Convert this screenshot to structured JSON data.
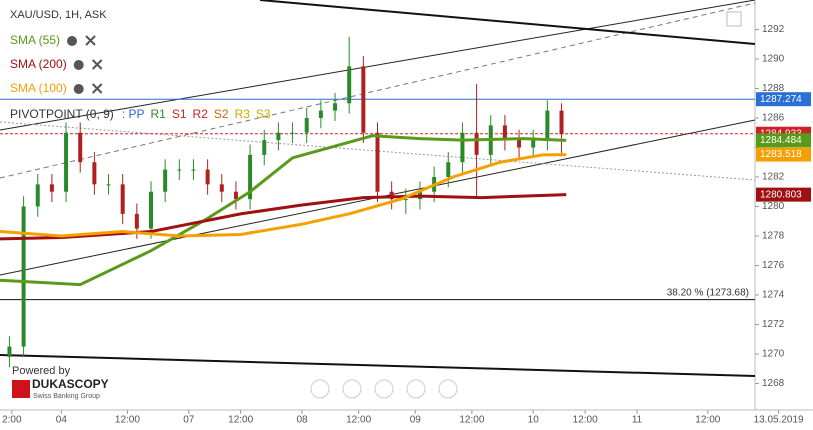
{
  "chart_data": {
    "type": "candlestick",
    "title": "XAU/USD, 1H, ASK",
    "ylim": [
      1266.2,
      1294.0
    ],
    "yticks": [
      1268,
      1270,
      1272,
      1274,
      1276,
      1278,
      1280,
      1282,
      1284,
      1286,
      1288,
      1290,
      1292
    ],
    "xlim": [
      0,
      160
    ],
    "xticks": [
      {
        "value": 2.5,
        "label": "2:00"
      },
      {
        "value": 13,
        "label": "04"
      },
      {
        "value": 27,
        "label": "12:00"
      },
      {
        "value": 40,
        "label": "07"
      },
      {
        "value": 51,
        "label": "12:00"
      },
      {
        "value": 64,
        "label": "08"
      },
      {
        "value": 76,
        "label": "12:00"
      },
      {
        "value": 88,
        "label": "09"
      },
      {
        "value": 100,
        "label": "12:00"
      },
      {
        "value": 113,
        "label": "10"
      },
      {
        "value": 124,
        "label": "12:00"
      },
      {
        "value": 135,
        "label": "11"
      },
      {
        "value": 150,
        "label": "12:00"
      },
      {
        "value": 165,
        "label": "13.05.2019"
      }
    ],
    "candles": {
      "x": [
        2,
        5,
        8,
        11,
        14,
        17,
        20,
        23,
        26,
        29,
        32,
        35,
        38,
        41,
        44,
        47,
        50,
        53,
        56,
        59,
        62,
        65,
        68,
        71,
        74,
        77,
        80,
        83,
        86,
        89,
        92,
        95,
        98,
        101,
        104,
        107,
        110,
        113,
        116,
        119
      ],
      "open": [
        1269.8,
        1270.5,
        1280,
        1281.5,
        1281,
        1285,
        1283,
        1281.5,
        1281.5,
        1279.5,
        1278.5,
        1281,
        1282.5,
        1282.5,
        1282.5,
        1281.5,
        1281,
        1280.5,
        1283.5,
        1284.5,
        1285,
        1285,
        1286,
        1286.5,
        1287,
        1289.5,
        1285,
        1281,
        1280.5,
        1280.5,
        1281,
        1282,
        1283,
        1285,
        1283.5,
        1285.5,
        1284.5,
        1284,
        1284.5,
        1286.5
      ],
      "high": [
        1271.2,
        1280.7,
        1282.2,
        1282.2,
        1285.7,
        1285.7,
        1283.7,
        1282.2,
        1282.2,
        1280.2,
        1281.7,
        1283.2,
        1283.2,
        1283.2,
        1283.2,
        1282.2,
        1281.7,
        1284.2,
        1285.2,
        1285.7,
        1285.7,
        1286.7,
        1287.2,
        1287.7,
        1291.5,
        1290.2,
        1285.7,
        1281.7,
        1281.2,
        1281.7,
        1282.7,
        1283.7,
        1285.7,
        1288.3,
        1286.2,
        1286.2,
        1285.2,
        1285.2,
        1287.2,
        1287.0
      ],
      "low": [
        1269.1,
        1269.8,
        1279.3,
        1280.3,
        1280.3,
        1282.3,
        1280.8,
        1280.8,
        1278.8,
        1277.8,
        1277.8,
        1280.3,
        1281.8,
        1281.8,
        1280.8,
        1280.3,
        1279.8,
        1279.8,
        1282.8,
        1283.8,
        1284.3,
        1284.3,
        1285.3,
        1285.8,
        1286.3,
        1284.3,
        1280.3,
        1279.8,
        1279.5,
        1279.8,
        1280.3,
        1281.3,
        1282.3,
        1280.7,
        1282.8,
        1283.8,
        1283.3,
        1283.3,
        1283.8,
        1283.4
      ],
      "close": [
        1270.5,
        1280,
        1281.5,
        1281,
        1285,
        1283,
        1281.5,
        1281.5,
        1279.5,
        1278.5,
        1281,
        1282.5,
        1282.5,
        1282.5,
        1281.5,
        1281,
        1280.5,
        1283.5,
        1284.5,
        1285,
        1285,
        1286,
        1286.5,
        1287,
        1289.5,
        1285,
        1281,
        1280.5,
        1280.5,
        1281,
        1282,
        1283,
        1285,
        1283.5,
        1285.5,
        1284.5,
        1284,
        1284.5,
        1286.5,
        1284.9
      ]
    },
    "series": [
      {
        "name": "SMA (55)",
        "color": "#5a9a1a",
        "x": [
          0,
          17,
          32,
          43,
          53,
          62,
          70,
          79,
          89,
          98,
          111,
          120
        ],
        "values": [
          1275,
          1274.7,
          1277,
          1279,
          1281,
          1283.3,
          1284,
          1284.8,
          1284.6,
          1284.5,
          1284.6,
          1284.484
        ]
      },
      {
        "name": "SMA (200)",
        "color": "#a01010",
        "x": [
          0,
          13,
          32,
          51,
          64,
          77,
          89,
          102,
          120
        ],
        "values": [
          1277.8,
          1277.9,
          1278.3,
          1279.5,
          1280.1,
          1280.6,
          1280.7,
          1280.6,
          1280.803
        ]
      },
      {
        "name": "SMA (100)",
        "color": "#f5a000",
        "x": [
          0,
          13,
          26,
          38,
          51,
          64,
          74,
          85,
          96,
          106,
          115,
          120
        ],
        "values": [
          1278.3,
          1278,
          1278.3,
          1278,
          1278.1,
          1278.8,
          1279.5,
          1280.5,
          1282,
          1283,
          1283.5,
          1283.518
        ]
      }
    ],
    "indicator": {
      "name": "PIVOTPOINT (0, 9)",
      "levels": [
        ": PP",
        "R1",
        "S1",
        "R2",
        "S2",
        "R3",
        "S3"
      ],
      "colors": [
        "#3366cc",
        "#2a8a2a",
        "#cc2222",
        "#cc2222",
        "#cc6600",
        "#ccaa00",
        "#ccaa00"
      ]
    },
    "price_labels": [
      {
        "value": 1287.274,
        "color": "#2a6fd6"
      },
      {
        "value": 1284.933,
        "color": "#cc2222"
      },
      {
        "value": 1284.484,
        "color": "#5a9a1a"
      },
      {
        "value": 1283.518,
        "color": "#f5a000"
      },
      {
        "value": 1280.803,
        "color": "#a01010"
      }
    ],
    "hline": {
      "value": 1287.274,
      "color": "#2a6fd6"
    },
    "fib": {
      "value": 1273.68,
      "label": "38.20 % (1273.68)"
    },
    "branding": {
      "powered": "Powered by",
      "name": "DUKASCOPY",
      "sub": "Swiss Banking Group"
    }
  }
}
